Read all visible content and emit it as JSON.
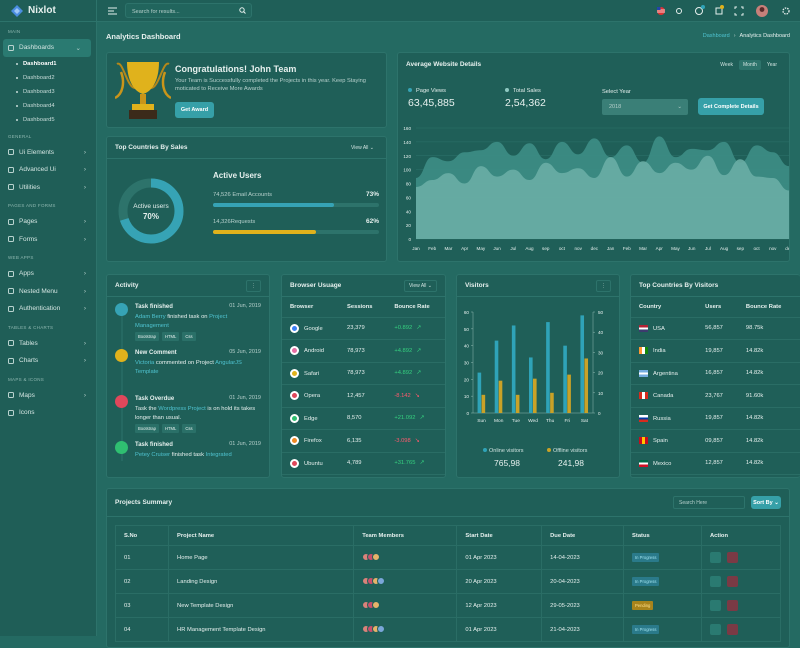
{
  "sidebar": {
    "brand": "Nixlot",
    "sections": [
      {
        "label": "MAIN",
        "items": [
          {
            "label": "Dashboards",
            "children": [
              "Dashboard1",
              "Dashboard2",
              "Dashboard3",
              "Dashboard4",
              "Dashboard5"
            ]
          }
        ]
      },
      {
        "label": "GENERAL",
        "items": [
          {
            "label": "Ui Elements"
          },
          {
            "label": "Advanced Ui"
          },
          {
            "label": "Utilities"
          }
        ]
      },
      {
        "label": "PAGES AND FORMS",
        "items": [
          {
            "label": "Pages"
          },
          {
            "label": "Forms"
          }
        ]
      },
      {
        "label": "WEB APPS",
        "items": [
          {
            "label": "Apps"
          },
          {
            "label": "Nested Menu"
          },
          {
            "label": "Authentication"
          }
        ]
      },
      {
        "label": "TABLES & CHARTS",
        "items": [
          {
            "label": "Tables"
          },
          {
            "label": "Charts"
          }
        ]
      },
      {
        "label": "MAPS & ICONS",
        "items": [
          {
            "label": "Maps"
          },
          {
            "label": "Icons"
          }
        ]
      }
    ]
  },
  "header": {
    "search_placeholder": "Search for results..."
  },
  "page": {
    "title": "Analytics Dashboard",
    "breadcrumb": [
      "Dashboard",
      "Analytics Dashboard"
    ]
  },
  "congrats": {
    "title": "Congratulations! John Team",
    "text": "Your Team is Successfully completed the Projects in this year. Keep Staying moticated to Receive More Awards",
    "button": "Get Award"
  },
  "sales": {
    "title": "Top Countries By Sales",
    "filter": "View All",
    "donut": {
      "label": "Active users",
      "value": 70,
      "value_label": "70%"
    },
    "heading": "Active Users",
    "bars": [
      {
        "label": "74,526 Email Accounts",
        "value": 73,
        "value_label": "73%",
        "color": "#36a3b5"
      },
      {
        "label": "14,326Requests",
        "value": 62,
        "value_label": "62%",
        "color": "#e0b21c"
      }
    ]
  },
  "website": {
    "title": "Average Website Details",
    "tabs": [
      "Week",
      "Month",
      "Year"
    ],
    "active_tab": 1,
    "stats": [
      {
        "label": "Page Views",
        "value": "63,45,885",
        "color": "#36a3b5"
      },
      {
        "label": "Total Sales",
        "value": "2,54,362",
        "color": "#8fc9c2"
      }
    ],
    "select_label": "Select Year",
    "select_value": "2018",
    "button": "Get Complete Details"
  },
  "website_chart": {
    "type": "area",
    "categories": [
      "Jan",
      "Feb",
      "Mar",
      "Apr",
      "May",
      "Jun",
      "Jul",
      "Aug",
      "sep",
      "oct",
      "nov",
      "dec",
      "Jan",
      "Feb",
      "Mar",
      "Apr",
      "May",
      "Jun",
      "Jul",
      "Aug",
      "sep",
      "oct",
      "nov",
      "dec"
    ],
    "ylim": [
      0,
      160
    ],
    "yticks": [
      0,
      20,
      40,
      60,
      80,
      100,
      120,
      140,
      160
    ],
    "series": [
      {
        "color": "#3d8e86",
        "values": [
          88,
          118,
          112,
          125,
          128,
          140,
          120,
          138,
          115,
          140,
          122,
          145,
          118,
          135,
          110,
          148,
          118,
          130,
          128,
          140,
          110,
          135,
          125,
          105
        ]
      },
      {
        "color": "#6aaea5",
        "values": [
          75,
          85,
          95,
          80,
          105,
          90,
          100,
          85,
          110,
          95,
          102,
          88,
          118,
          90,
          112,
          95,
          110,
          100,
          120,
          92,
          115,
          90,
          88,
          70
        ]
      }
    ]
  },
  "activity": {
    "title": "Activity",
    "items": [
      {
        "title": "Task finished",
        "date": "01 Jun, 2019",
        "color": "#36a3b5",
        "body": [
          {
            "link": "Adam Berry"
          },
          {
            "text": "finished task on"
          },
          {
            "link": "Project Management"
          }
        ],
        "tags": [
          "Bootstrap",
          "HTML",
          "Css"
        ]
      },
      {
        "title": "New Comment",
        "date": "05 Jun, 2019",
        "color": "#e0b21c",
        "body": [
          {
            "link": "Victoria"
          },
          {
            "text": "commented on Project"
          },
          {
            "link": "AngularJS Template"
          }
        ]
      },
      {
        "title": "Task Overdue",
        "date": "01 Jun, 2019",
        "color": "#e0475b",
        "body": [
          {
            "text": "Task the"
          },
          {
            "link": "Wordpress Project"
          },
          {
            "text": "is on hold its takes longer than usual."
          }
        ],
        "tags": [
          "Bootstrap",
          "HTML",
          "Css"
        ]
      },
      {
        "title": "Task finished",
        "date": "01 Jun, 2019",
        "color": "#2fbf71",
        "body": [
          {
            "link": "Petey Cruiser"
          },
          {
            "text": "finished task"
          },
          {
            "link": "Integrated"
          }
        ]
      }
    ]
  },
  "browser": {
    "title": "Browser Usuage",
    "filter": "View All",
    "columns": [
      "Browser",
      "Sessions",
      "Bounce Rate"
    ],
    "rows": [
      {
        "name": "Google",
        "sessions": "23,379",
        "bounce": "+0.892",
        "color": "#3b82f6"
      },
      {
        "name": "Android",
        "sessions": "78,973",
        "bounce": "+4.892",
        "color": "#e76fa4"
      },
      {
        "name": "Safari",
        "sessions": "78,973",
        "bounce": "+4.892",
        "color": "#e0b21c"
      },
      {
        "name": "Opera",
        "sessions": "12,457",
        "bounce": "-8.142",
        "color": "#e0475b"
      },
      {
        "name": "Edge",
        "sessions": "8,570",
        "bounce": "+21.092",
        "color": "#2fbf71"
      },
      {
        "name": "Firefox",
        "sessions": "6,135",
        "bounce": "-3.098",
        "color": "#f08a24"
      },
      {
        "name": "Ubuntu",
        "sessions": "4,789",
        "bounce": "+31.765",
        "color": "#e0475b"
      }
    ]
  },
  "visitors_chart": {
    "type": "bar",
    "title": "Visitors",
    "categories": [
      "Sun",
      "Mon",
      "Tue",
      "Wed",
      "Thu",
      "Fri",
      "Sat"
    ],
    "ylim": [
      0,
      60
    ],
    "yticks": [
      0,
      10,
      20,
      30,
      40,
      50,
      60
    ],
    "y2lim": [
      0,
      50
    ],
    "y2ticks": [
      0,
      10,
      20,
      30,
      40,
      50
    ],
    "series": [
      {
        "name": "Online visitors",
        "color": "#2fa3b8",
        "values": [
          24,
          43,
          52,
          33,
          54,
          40,
          58
        ],
        "total": "765,98"
      },
      {
        "name": "Offline visitors",
        "color": "#c9a227",
        "axis": "y2",
        "values": [
          9,
          16,
          9,
          17,
          10,
          19,
          27
        ],
        "total": "241,98"
      }
    ]
  },
  "countries": {
    "title": "Top Countries By Visitors",
    "columns": [
      "Country",
      "Users",
      "Bounce Rate"
    ],
    "rows": [
      {
        "name": "USA",
        "users": "56,857",
        "bounce": "98.75k"
      },
      {
        "name": "India",
        "users": "19,857",
        "bounce": "14.82k"
      },
      {
        "name": "Argentina",
        "users": "16,857",
        "bounce": "14.82k"
      },
      {
        "name": "Canada",
        "users": "23,767",
        "bounce": "91.60k"
      },
      {
        "name": "Russia",
        "users": "19,857",
        "bounce": "14.82k"
      },
      {
        "name": "Spain",
        "users": "09,857",
        "bounce": "14.82k"
      },
      {
        "name": "Mexico",
        "users": "12,857",
        "bounce": "14.82k"
      }
    ]
  },
  "projects": {
    "title": "Projects Summary",
    "search_placeholder": "Search Here",
    "sort": "Sort By",
    "columns": [
      "S.No",
      "Project Name",
      "Team Members",
      "Start Date",
      "Due Date",
      "Status",
      "Action"
    ],
    "rows": [
      {
        "no": "01",
        "name": "Home Page",
        "start": "01 Apr 2023",
        "due": "14-04-2023",
        "status": "In Progress"
      },
      {
        "no": "02",
        "name": "Landing Design",
        "start": "20 Apr 2023",
        "due": "20-04-2023",
        "status": "In Progress"
      },
      {
        "no": "03",
        "name": "New Template Design",
        "start": "12 Apr 2023",
        "due": "29-05-2023",
        "status": "Pending"
      },
      {
        "no": "04",
        "name": "HR Management Template Design",
        "start": "01 Apr 2023",
        "due": "21-04-2023",
        "status": "In Progress"
      }
    ]
  }
}
